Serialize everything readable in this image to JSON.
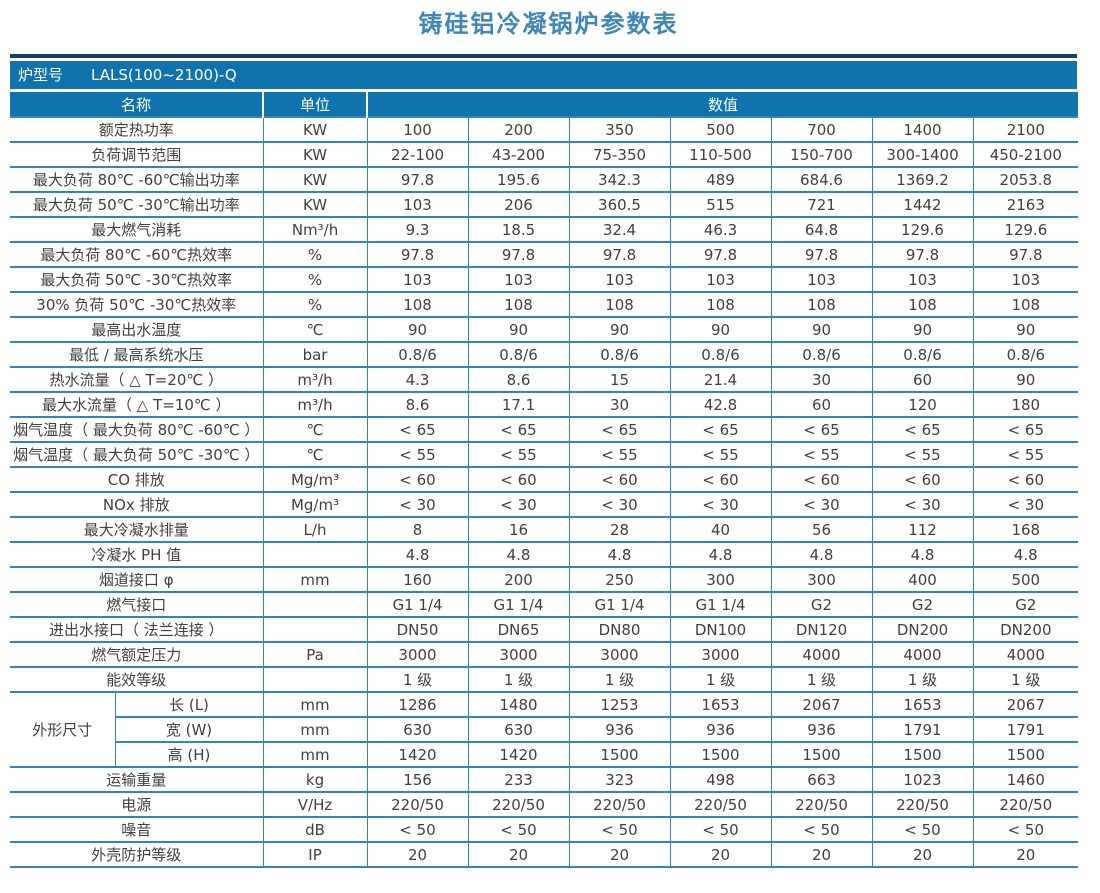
{
  "title": "铸硅铝冷凝锅炉参数表",
  "model_bar": {
    "label": "炉型号",
    "value": "LALS(100~2100)-Q"
  },
  "header": {
    "name": "名称",
    "unit": "单位",
    "values": "数值"
  },
  "dimension_group": "外形尺寸",
  "colors": {
    "header_bg": "#1173ad",
    "top_line": "#1c3c5e",
    "border": "#2e86c1",
    "title_text": "#4086b8",
    "cell_text": "#404040"
  },
  "rows": [
    {
      "name": "额定热功率",
      "unit": "KW",
      "values": [
        "100",
        "200",
        "350",
        "500",
        "700",
        "1400",
        "2100"
      ]
    },
    {
      "name": "负荷调节范围",
      "unit": "KW",
      "values": [
        "22-100",
        "43-200",
        "75-350",
        "110-500",
        "150-700",
        "300-1400",
        "450-2100"
      ]
    },
    {
      "name": "最大负荷 80℃ -60℃输出功率",
      "unit": "KW",
      "values": [
        "97.8",
        "195.6",
        "342.3",
        "489",
        "684.6",
        "1369.2",
        "2053.8"
      ]
    },
    {
      "name": "最大负荷 50℃ -30℃输出功率",
      "unit": "KW",
      "values": [
        "103",
        "206",
        "360.5",
        "515",
        "721",
        "1442",
        "2163"
      ]
    },
    {
      "name": "最大燃气消耗",
      "unit": "Nm³/h",
      "values": [
        "9.3",
        "18.5",
        "32.4",
        "46.3",
        "64.8",
        "129.6",
        "129.6"
      ]
    },
    {
      "name": "最大负荷 80℃ -60℃热效率",
      "unit": "%",
      "values": [
        "97.8",
        "97.8",
        "97.8",
        "97.8",
        "97.8",
        "97.8",
        "97.8"
      ]
    },
    {
      "name": "最大负荷 50℃ -30℃热效率",
      "unit": "%",
      "values": [
        "103",
        "103",
        "103",
        "103",
        "103",
        "103",
        "103"
      ]
    },
    {
      "name": "30% 负荷 50℃ -30℃热效率",
      "unit": "%",
      "values": [
        "108",
        "108",
        "108",
        "108",
        "108",
        "108",
        "108"
      ]
    },
    {
      "name": "最高出水温度",
      "unit": "℃",
      "values": [
        "90",
        "90",
        "90",
        "90",
        "90",
        "90",
        "90"
      ]
    },
    {
      "name": "最低 / 最高系统水压",
      "unit": "bar",
      "values": [
        "0.8/6",
        "0.8/6",
        "0.8/6",
        "0.8/6",
        "0.8/6",
        "0.8/6",
        "0.8/6"
      ]
    },
    {
      "name": "热水流量（ △ T=20℃ ）",
      "unit": "m³/h",
      "values": [
        "4.3",
        "8.6",
        "15",
        "21.4",
        "30",
        "60",
        "90"
      ]
    },
    {
      "name": "最大水流量（ △ T=10℃ ）",
      "unit": "m³/h",
      "values": [
        "8.6",
        "17.1",
        "30",
        "42.8",
        "60",
        "120",
        "180"
      ]
    },
    {
      "name": "烟气温度（ 最大负荷 80℃ -60℃ ）",
      "unit": "℃",
      "values": [
        "< 65",
        "< 65",
        "< 65",
        "< 65",
        "< 65",
        "< 65",
        "< 65"
      ]
    },
    {
      "name": "烟气温度（ 最大负荷 50℃ -30℃ ）",
      "unit": "℃",
      "values": [
        "< 55",
        "< 55",
        "< 55",
        "< 55",
        "< 55",
        "< 55",
        "< 55"
      ]
    },
    {
      "name": "CO 排放",
      "unit": "Mg/m³",
      "values": [
        "< 60",
        "< 60",
        "< 60",
        "< 60",
        "< 60",
        "< 60",
        "< 60"
      ]
    },
    {
      "name": "NOx 排放",
      "unit": "Mg/m³",
      "values": [
        "< 30",
        "< 30",
        "< 30",
        "< 30",
        "< 30",
        "< 30",
        "< 30"
      ]
    },
    {
      "name": "最大冷凝水排量",
      "unit": "L/h",
      "values": [
        "8",
        "16",
        "28",
        "40",
        "56",
        "112",
        "168"
      ]
    },
    {
      "name": "冷凝水 PH 值",
      "unit": "",
      "values": [
        "4.8",
        "4.8",
        "4.8",
        "4.8",
        "4.8",
        "4.8",
        "4.8"
      ]
    },
    {
      "name": "烟道接口 φ",
      "unit": "mm",
      "values": [
        "160",
        "200",
        "250",
        "300",
        "300",
        "400",
        "500"
      ]
    },
    {
      "name": "燃气接口",
      "unit": "",
      "values": [
        "G1 1/4",
        "G1 1/4",
        "G1 1/4",
        "G1 1/4",
        "G2",
        "G2",
        "G2"
      ]
    },
    {
      "name": "进出水接口（ 法兰连接 ）",
      "unit": "",
      "values": [
        "DN50",
        "DN65",
        "DN80",
        "DN100",
        "DN120",
        "DN200",
        "DN200"
      ]
    },
    {
      "name": "燃气额定压力",
      "unit": "Pa",
      "values": [
        "3000",
        "3000",
        "3000",
        "3000",
        "4000",
        "4000",
        "4000"
      ]
    },
    {
      "name": "能效等级",
      "unit": "",
      "values": [
        "1 级",
        "1 级",
        "1 级",
        "1 级",
        "1 级",
        "1 级",
        "1 级"
      ]
    },
    {
      "group": true,
      "name": "长 (L)",
      "unit": "mm",
      "values": [
        "1286",
        "1480",
        "1253",
        "1653",
        "2067",
        "1653",
        "2067"
      ]
    },
    {
      "group": true,
      "name": "宽 (W)",
      "unit": "mm",
      "values": [
        "630",
        "630",
        "936",
        "936",
        "936",
        "1791",
        "1791"
      ]
    },
    {
      "group": true,
      "name": "高 (H)",
      "unit": "mm",
      "values": [
        "1420",
        "1420",
        "1500",
        "1500",
        "1500",
        "1500",
        "1500"
      ]
    },
    {
      "name": "运输重量",
      "unit": "kg",
      "values": [
        "156",
        "233",
        "323",
        "498",
        "663",
        "1023",
        "1460"
      ]
    },
    {
      "name": "电源",
      "unit": "V/Hz",
      "values": [
        "220/50",
        "220/50",
        "220/50",
        "220/50",
        "220/50",
        "220/50",
        "220/50"
      ]
    },
    {
      "name": "噪音",
      "unit": "dB",
      "values": [
        "< 50",
        "< 50",
        "< 50",
        "< 50",
        "< 50",
        "< 50",
        "< 50"
      ]
    },
    {
      "name": "外壳防护等级",
      "unit": "IP",
      "values": [
        "20",
        "20",
        "20",
        "20",
        "20",
        "20",
        "20"
      ]
    }
  ]
}
